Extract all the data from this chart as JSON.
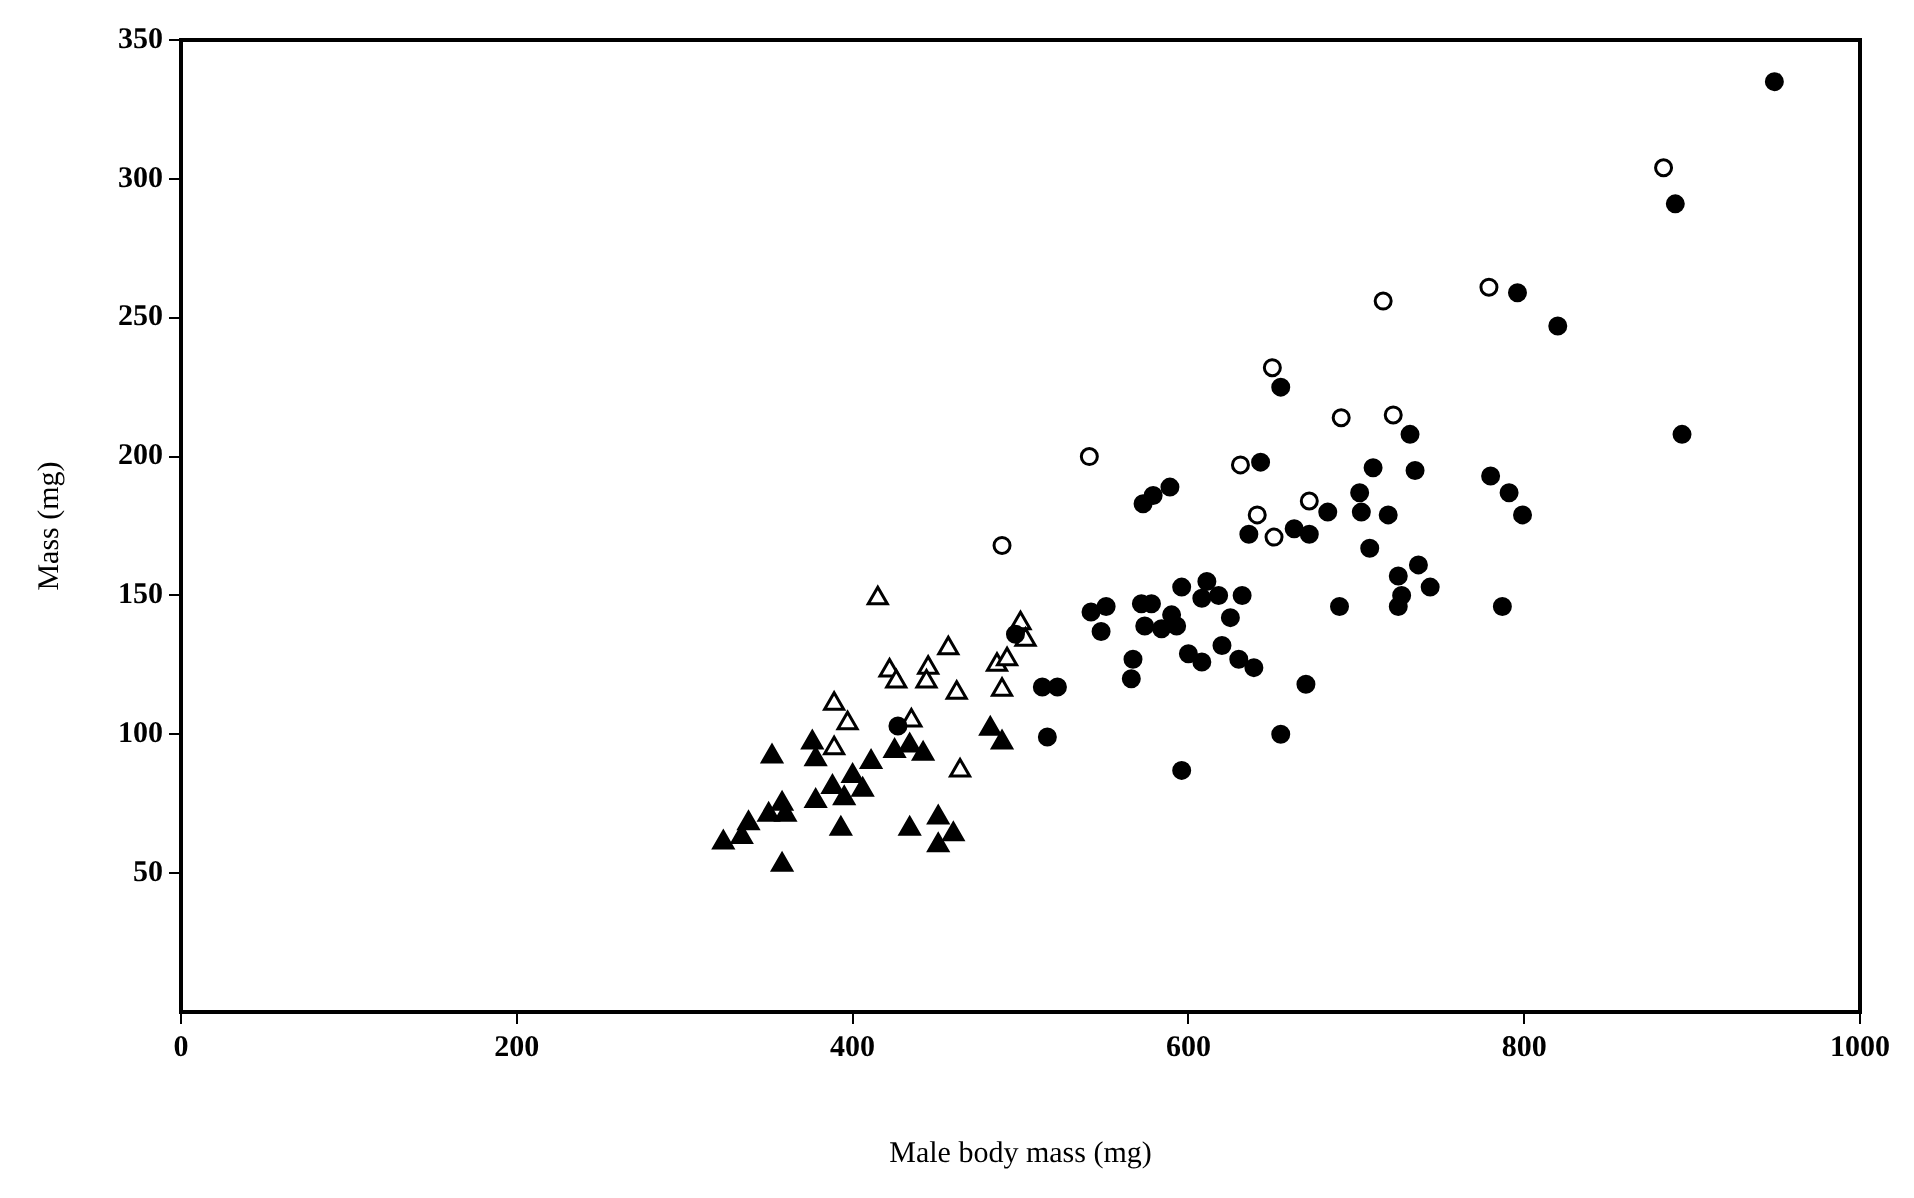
{
  "chart_data": {
    "type": "scatter",
    "xlabel": "Male body mass (mg)",
    "ylabel": "Mass (mg)",
    "xlim": [
      0,
      1000
    ],
    "xticks": [
      0,
      200,
      400,
      600,
      800,
      1000
    ],
    "ylim": [
      0,
      350
    ],
    "yticks": [
      50,
      100,
      150,
      200,
      250,
      300,
      350
    ],
    "grid": false,
    "legend": false,
    "series": [
      {
        "marker": "circle",
        "color": "#000000",
        "x": [
          949,
          890,
          796,
          820,
          732,
          894,
          735,
          780,
          791,
          799,
          719,
          737,
          725,
          744,
          727,
          725,
          787,
          655,
          643,
          710,
          589,
          579,
          573,
          702,
          703,
          683,
          636,
          663,
          672,
          708,
          690,
          596,
          611,
          608,
          618,
          632,
          625,
          572,
          578,
          574,
          584,
          590,
          593,
          542,
          551,
          548,
          600,
          608,
          620,
          630,
          639,
          567,
          566,
          670,
          513,
          522,
          516,
          655,
          596,
          497,
          427
        ],
        "values": [
          335,
          291,
          259,
          247,
          208,
          208,
          195,
          193,
          187,
          179,
          179,
          161,
          157,
          153,
          150,
          146,
          146,
          225,
          198,
          196,
          189,
          186,
          183,
          187,
          180,
          180,
          172,
          174,
          172,
          167,
          146,
          153,
          155,
          149,
          150,
          150,
          142,
          147,
          147,
          139,
          138,
          143,
          139,
          144,
          146,
          137,
          129,
          126,
          132,
          127,
          124,
          127,
          120,
          118,
          117,
          117,
          99,
          100,
          87,
          136,
          103
        ]
      },
      {
        "marker": "circle",
        "color": "#ffffff",
        "x": [
          883,
          779,
          716,
          722,
          650,
          691,
          541,
          631,
          672,
          641,
          651,
          489
        ],
        "values": [
          304,
          261,
          256,
          215,
          232,
          214,
          200,
          197,
          184,
          179,
          171,
          168
        ]
      },
      {
        "marker": "triangle",
        "color": "#000000",
        "x": [
          482,
          489,
          352,
          376,
          378,
          411,
          425,
          434,
          442,
          388,
          397,
          400,
          406,
          378,
          395,
          358,
          350,
          338,
          334,
          323,
          360,
          393,
          434,
          451,
          451,
          460,
          358
        ],
        "values": [
          102,
          97,
          92,
          97,
          91,
          90,
          94,
          96,
          93,
          81,
          null,
          85,
          80,
          76,
          77,
          75,
          71,
          68,
          63,
          61,
          71,
          66,
          66,
          70,
          60,
          64,
          53
        ]
      },
      {
        "marker": "triangle",
        "color": "#ffffff",
        "x": [
          415,
          500,
          503,
          457,
          422,
          426,
          445,
          444,
          486,
          492,
          462,
          489,
          389,
          397,
          435,
          389,
          464
        ],
        "values": [
          149,
          140,
          134,
          131,
          123,
          119,
          124,
          119,
          125,
          127,
          115,
          116,
          111,
          104,
          105,
          95,
          87
        ]
      }
    ]
  }
}
